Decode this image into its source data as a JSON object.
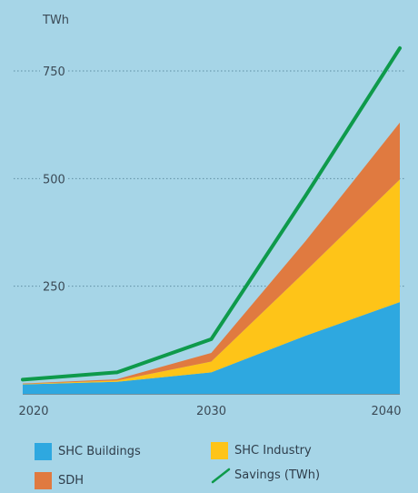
{
  "chart_data": {
    "type": "area",
    "stacked": true,
    "ylabel": "TWh",
    "xlabel": "",
    "title": "",
    "x": [
      2020,
      2025,
      2030,
      2035,
      2040
    ],
    "xticks": [
      "2020",
      "2030",
      "2040"
    ],
    "xtick_values": [
      2020,
      2030,
      2040
    ],
    "yticks": [
      "250",
      "500",
      "750"
    ],
    "ytick_values": [
      250,
      500,
      750
    ],
    "ylim": [
      0,
      850
    ],
    "xlim": [
      2020,
      2040
    ],
    "grid": "horizontal dotted",
    "legend_position": "bottom",
    "series": [
      {
        "name": "SHC Buildings",
        "kind": "area",
        "color": "#2ea8e0",
        "values": [
          22,
          28,
          50,
          135,
          213
        ]
      },
      {
        "name": "SHC Industry",
        "kind": "area",
        "color": "#fec418",
        "values": [
          1,
          3,
          25,
          150,
          285
        ]
      },
      {
        "name": "SDH",
        "kind": "area",
        "color": "#e07a40",
        "values": [
          1,
          3,
          20,
          70,
          132
        ]
      },
      {
        "name": "Savings (TWh)",
        "kind": "line",
        "color": "#0e9a4b",
        "values": [
          33,
          50,
          127,
          460,
          803
        ]
      }
    ]
  }
}
